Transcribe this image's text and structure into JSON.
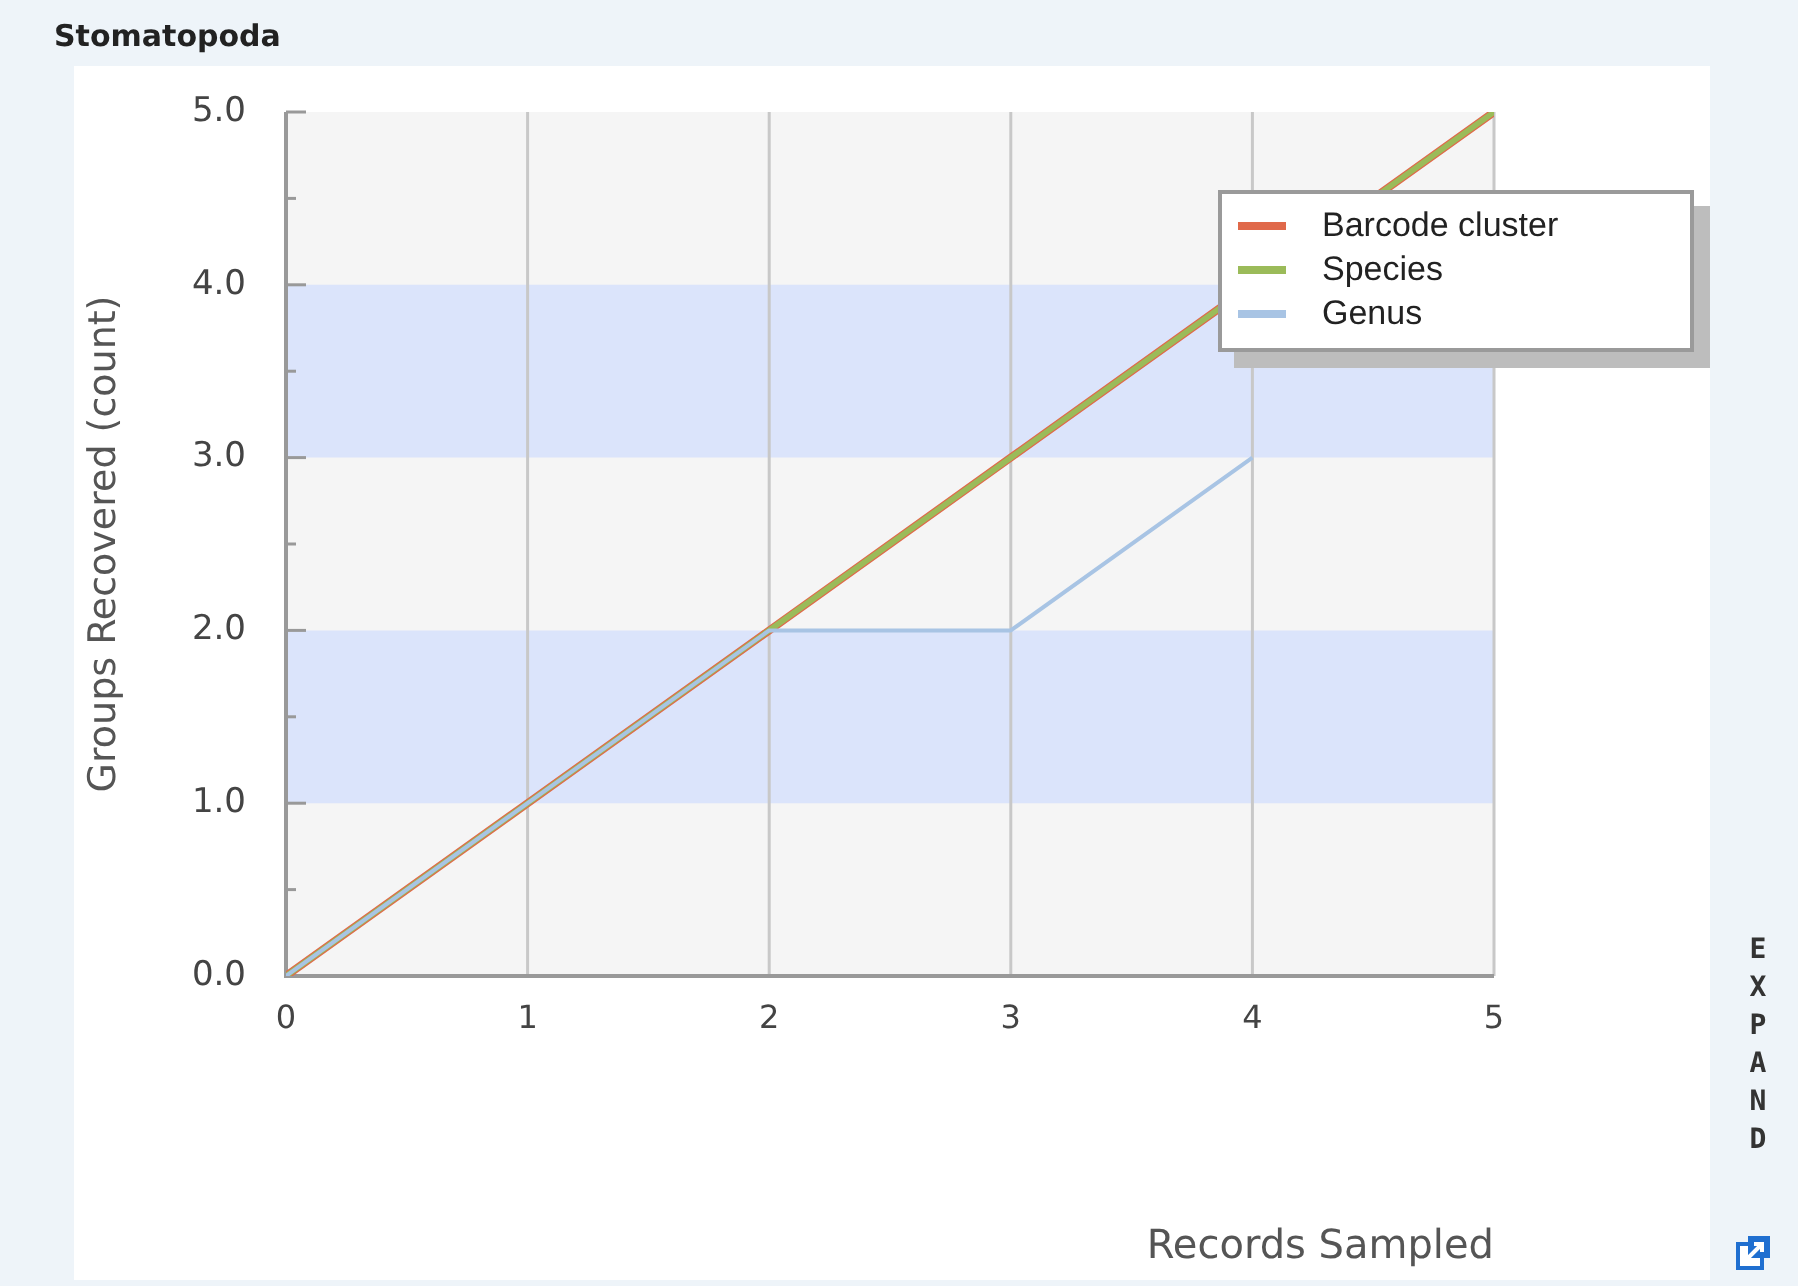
{
  "chart_data": {
    "type": "line",
    "title": "Stomatopoda",
    "xlabel": "Records Sampled",
    "ylabel": "Groups Recovered (count)",
    "x": [
      0,
      1,
      2,
      3,
      4,
      5
    ],
    "series": [
      {
        "name": "Barcode cluster",
        "color": "#e0694a",
        "values": [
          0,
          1,
          2,
          3,
          null,
          5
        ]
      },
      {
        "name": "Species",
        "color": "#9bbb59",
        "values": [
          0,
          1,
          2,
          3,
          null,
          5
        ]
      },
      {
        "name": "Genus",
        "color": "#a8c4e4",
        "values": [
          0,
          1,
          2,
          2,
          3,
          null
        ]
      }
    ],
    "xlim": [
      0,
      5
    ],
    "xticks": [
      0,
      1,
      2,
      3,
      4,
      5
    ],
    "ylim": [
      0,
      5
    ],
    "yticks": [
      {
        "value": 0,
        "label": "0.0"
      },
      {
        "value": 0.5,
        "label": null
      },
      {
        "value": 1,
        "label": "1.0"
      },
      {
        "value": 1.5,
        "label": null
      },
      {
        "value": 2,
        "label": "2.0"
      },
      {
        "value": 2.5,
        "label": null
      },
      {
        "value": 3,
        "label": "3.0"
      },
      {
        "value": 3.5,
        "label": null
      },
      {
        "value": 4,
        "label": "4.0"
      },
      {
        "value": 4.5,
        "label": null
      },
      {
        "value": 5,
        "label": "5.0"
      }
    ],
    "bands": [
      {
        "axis": "y",
        "from": 1,
        "to": 2,
        "color": "#dbe4fb"
      },
      {
        "axis": "y",
        "from": 3,
        "to": 4,
        "color": "#dbe4fb"
      }
    ],
    "grid": "x",
    "legend": "top right",
    "marker": "none",
    "line_style": "solid",
    "annotations": [
      "EXPAND"
    ]
  }
}
